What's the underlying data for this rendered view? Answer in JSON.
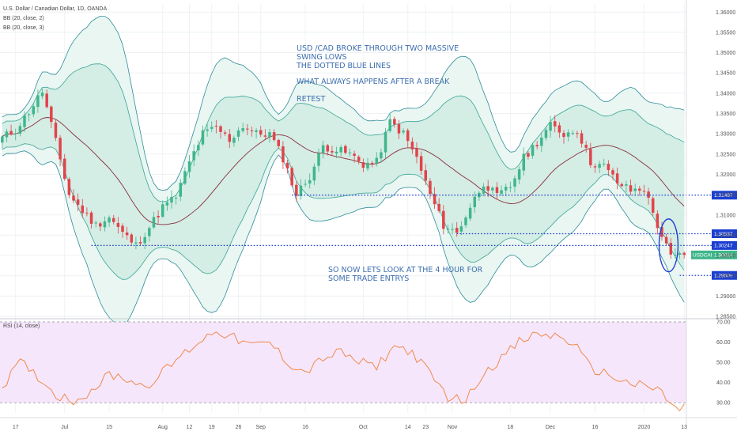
{
  "chart_data": [
    {
      "type": "candlestick",
      "title": "U.S. Dollar / Canadian Dollar, 1D, OANDA",
      "symbol": "USDCAD",
      "last_price": "1.30014",
      "indicators": [
        "BB (20, close, 2)",
        "BB (20, close, 3)"
      ],
      "ylim": [
        1.285,
        1.362
      ],
      "price_ticks": [
        "1.36000",
        "1.35500",
        "1.35000",
        "1.34500",
        "1.34000",
        "1.33500",
        "1.33000",
        "1.32500",
        "1.32000",
        "1.31500",
        "1.31000",
        "1.30500",
        "1.30000",
        "1.29500",
        "1.29000",
        "1.28500"
      ],
      "x_ticks": [
        "17",
        "Jul",
        "15",
        "Aug",
        "12",
        "19",
        "26",
        "Sep",
        "16",
        "Oct",
        "14",
        "23",
        "Nov",
        "18",
        "Dec",
        "16",
        "2020",
        "13"
      ],
      "levels": [
        {
          "label": "1.31487",
          "value": 1.31487,
          "from": 65
        },
        {
          "label": "1.30537",
          "value": 1.30537,
          "from": 102
        },
        {
          "label": "1.30247",
          "value": 1.30247,
          "from": 20
        },
        {
          "label": "1.29509",
          "value": 1.29509,
          "from": 152
        }
      ],
      "annotations": [
        "USD /CAD BROKE THROUGH TWO MASSIVE",
        "SWING LOWS",
        "THE DOTTED BLUE LINES",
        "WHAT ALWAYS HAPPENS AFTER A BREAK",
        "RETEST",
        "SO NOW LETS LOOK AT THE 4 HOUR FOR",
        "SOME TRADE ENTRYS"
      ],
      "close_path": [
        [
          0,
          1.329
        ],
        [
          3,
          1.331
        ],
        [
          6,
          1.3355
        ],
        [
          9,
          1.3405
        ],
        [
          12,
          1.328
        ],
        [
          15,
          1.315
        ],
        [
          18,
          1.311
        ],
        [
          21,
          1.3075
        ],
        [
          24,
          1.3095
        ],
        [
          27,
          1.3055
        ],
        [
          30,
          1.3025
        ],
        [
          33,
          1.307
        ],
        [
          36,
          1.312
        ],
        [
          39,
          1.3145
        ],
        [
          42,
          1.323
        ],
        [
          45,
          1.33
        ],
        [
          48,
          1.3315
        ],
        [
          51,
          1.3285
        ],
        [
          54,
          1.332
        ],
        [
          57,
          1.33
        ],
        [
          60,
          1.33
        ],
        [
          63,
          1.324
        ],
        [
          66,
          1.315
        ],
        [
          69,
          1.3195
        ],
        [
          72,
          1.327
        ],
        [
          75,
          1.326
        ],
        [
          78,
          1.325
        ],
        [
          81,
          1.3225
        ],
        [
          84,
          1.323
        ],
        [
          87,
          1.333
        ],
        [
          90,
          1.33
        ],
        [
          93,
          1.324
        ],
        [
          96,
          1.315
        ],
        [
          99,
          1.3075
        ],
        [
          102,
          1.3055
        ],
        [
          105,
          1.312
        ],
        [
          108,
          1.318
        ],
        [
          111,
          1.3145
        ],
        [
          114,
          1.317
        ],
        [
          117,
          1.324
        ],
        [
          120,
          1.328
        ],
        [
          123,
          1.332
        ],
        [
          126,
          1.33
        ],
        [
          129,
          1.331
        ],
        [
          132,
          1.323
        ],
        [
          135,
          1.322
        ],
        [
          138,
          1.318
        ],
        [
          141,
          1.316
        ],
        [
          144,
          1.3165
        ],
        [
          147,
          1.3075
        ],
        [
          150,
          1.2995
        ],
        [
          153,
          1.3001
        ]
      ]
    },
    {
      "type": "line",
      "title": "RSI (14, close)",
      "ylim": [
        25,
        70
      ],
      "y_ticks": [
        "70.00",
        "60.00",
        "50.00",
        "40.00",
        "30.00"
      ],
      "rsi_path": [
        [
          0,
          38
        ],
        [
          4,
          50
        ],
        [
          8,
          43
        ],
        [
          12,
          34
        ],
        [
          16,
          31
        ],
        [
          20,
          36
        ],
        [
          24,
          44
        ],
        [
          28,
          42
        ],
        [
          32,
          38
        ],
        [
          36,
          45
        ],
        [
          40,
          53
        ],
        [
          44,
          60
        ],
        [
          48,
          66
        ],
        [
          52,
          62
        ],
        [
          56,
          58
        ],
        [
          60,
          60
        ],
        [
          64,
          50
        ],
        [
          68,
          45
        ],
        [
          72,
          52
        ],
        [
          76,
          55
        ],
        [
          80,
          50
        ],
        [
          84,
          48
        ],
        [
          88,
          58
        ],
        [
          92,
          55
        ],
        [
          96,
          44
        ],
        [
          100,
          33
        ],
        [
          104,
          31
        ],
        [
          108,
          45
        ],
        [
          112,
          52
        ],
        [
          116,
          60
        ],
        [
          120,
          64
        ],
        [
          124,
          63
        ],
        [
          128,
          60
        ],
        [
          132,
          47
        ],
        [
          136,
          44
        ],
        [
          140,
          40
        ],
        [
          144,
          38
        ],
        [
          148,
          36
        ],
        [
          150,
          28
        ],
        [
          152,
          26
        ],
        [
          153,
          30
        ]
      ]
    }
  ]
}
